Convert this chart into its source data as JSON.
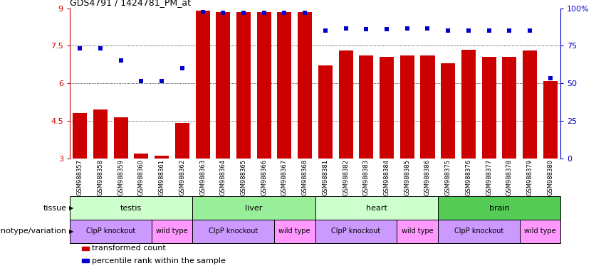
{
  "title": "GDS4791 / 1424781_PM_at",
  "samples": [
    "GSM988357",
    "GSM988358",
    "GSM988359",
    "GSM988360",
    "GSM988361",
    "GSM988362",
    "GSM988363",
    "GSM988364",
    "GSM988365",
    "GSM988366",
    "GSM988367",
    "GSM988368",
    "GSM988381",
    "GSM988382",
    "GSM988383",
    "GSM988384",
    "GSM988385",
    "GSM988386",
    "GSM988375",
    "GSM988376",
    "GSM988377",
    "GSM988378",
    "GSM988379",
    "GSM988380"
  ],
  "bar_values": [
    4.8,
    4.95,
    4.65,
    3.2,
    3.1,
    4.4,
    8.9,
    8.85,
    8.85,
    8.85,
    8.85,
    8.85,
    6.7,
    7.3,
    7.1,
    7.05,
    7.1,
    7.1,
    6.8,
    7.35,
    7.05,
    7.05,
    7.3,
    6.1
  ],
  "percentile_values": [
    7.4,
    7.4,
    6.9,
    6.1,
    6.1,
    6.6,
    8.85,
    8.82,
    8.83,
    8.83,
    8.83,
    8.83,
    8.1,
    8.2,
    8.15,
    8.15,
    8.2,
    8.2,
    8.1,
    8.1,
    8.1,
    8.1,
    8.1,
    6.2
  ],
  "bar_color": "#cc0000",
  "dot_color": "#0000cc",
  "ymin": 3.0,
  "ymax": 9.0,
  "yticks": [
    3,
    4.5,
    6,
    7.5,
    9
  ],
  "ytick_labels": [
    "3",
    "4.5",
    "6",
    "7.5",
    "9"
  ],
  "y2ticks": [
    0,
    25,
    50,
    75,
    100
  ],
  "y2tick_labels": [
    "0",
    "25",
    "50",
    "75",
    "100%"
  ],
  "hlines": [
    4.5,
    6.0,
    7.5
  ],
  "tissue_groups": [
    {
      "label": "testis",
      "start": 0,
      "end": 6,
      "color": "#ccffcc"
    },
    {
      "label": "liver",
      "start": 6,
      "end": 12,
      "color": "#99ee99"
    },
    {
      "label": "heart",
      "start": 12,
      "end": 18,
      "color": "#ccffcc"
    },
    {
      "label": "brain",
      "start": 18,
      "end": 24,
      "color": "#55cc55"
    }
  ],
  "genotype_groups": [
    {
      "label": "ClpP knockout",
      "start": 0,
      "end": 4,
      "color": "#cc99ff"
    },
    {
      "label": "wild type",
      "start": 4,
      "end": 6,
      "color": "#ff99ff"
    },
    {
      "label": "ClpP knockout",
      "start": 6,
      "end": 10,
      "color": "#cc99ff"
    },
    {
      "label": "wild type",
      "start": 10,
      "end": 12,
      "color": "#ff99ff"
    },
    {
      "label": "ClpP knockout",
      "start": 12,
      "end": 16,
      "color": "#cc99ff"
    },
    {
      "label": "wild type",
      "start": 16,
      "end": 18,
      "color": "#ff99ff"
    },
    {
      "label": "ClpP knockout",
      "start": 18,
      "end": 22,
      "color": "#cc99ff"
    },
    {
      "label": "wild type",
      "start": 22,
      "end": 24,
      "color": "#ff99ff"
    }
  ],
  "bg_color": "#ffffff",
  "tissue_row_label": "tissue",
  "genotype_row_label": "genotype/variation",
  "legend_items": [
    {
      "label": "transformed count",
      "color": "#cc0000"
    },
    {
      "label": "percentile rank within the sample",
      "color": "#0000cc"
    }
  ]
}
